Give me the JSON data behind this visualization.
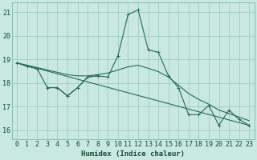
{
  "xlabel": "Humidex (Indice chaleur)",
  "background_color": "#c8e8e0",
  "grid_color": "#9ac8c0",
  "line_color": "#2a6858",
  "xlim": [
    -0.5,
    23.5
  ],
  "ylim": [
    15.6,
    21.4
  ],
  "yticks": [
    16,
    17,
    18,
    19,
    20,
    21
  ],
  "xticks": [
    0,
    1,
    2,
    3,
    4,
    5,
    6,
    7,
    8,
    9,
    10,
    11,
    12,
    13,
    14,
    15,
    16,
    17,
    18,
    19,
    20,
    21,
    22,
    23
  ],
  "lines": [
    {
      "x": [
        0,
        1,
        2,
        3,
        4,
        5,
        6,
        7,
        8,
        9,
        10,
        11,
        12,
        13,
        14,
        15,
        16,
        17,
        18,
        19,
        20,
        21,
        22,
        23
      ],
      "y": [
        18.85,
        18.7,
        18.6,
        17.8,
        17.8,
        17.45,
        17.8,
        18.25,
        18.3,
        18.25,
        19.15,
        20.9,
        21.1,
        19.4,
        19.3,
        18.3,
        17.8,
        16.65,
        16.65,
        17.05,
        16.2,
        16.85,
        16.45,
        16.2
      ],
      "marker": true
    },
    {
      "x": [
        0,
        1,
        2,
        3,
        4,
        5,
        6,
        7,
        8,
        9,
        10,
        11,
        12,
        13,
        14,
        15,
        16,
        17,
        18,
        19,
        20,
        21,
        22,
        23
      ],
      "y": [
        18.85,
        18.75,
        18.65,
        18.55,
        18.45,
        18.35,
        18.3,
        18.3,
        18.35,
        18.42,
        18.55,
        18.68,
        18.75,
        18.62,
        18.48,
        18.25,
        17.9,
        17.55,
        17.3,
        17.1,
        16.85,
        16.7,
        16.55,
        16.4
      ],
      "marker": false
    },
    {
      "x": [
        0,
        23
      ],
      "y": [
        18.85,
        16.2
      ],
      "marker": false
    },
    {
      "x": [
        3,
        4,
        5,
        6,
        7,
        8
      ],
      "y": [
        17.8,
        17.8,
        17.45,
        17.8,
        18.25,
        18.3
      ],
      "marker": true
    }
  ]
}
